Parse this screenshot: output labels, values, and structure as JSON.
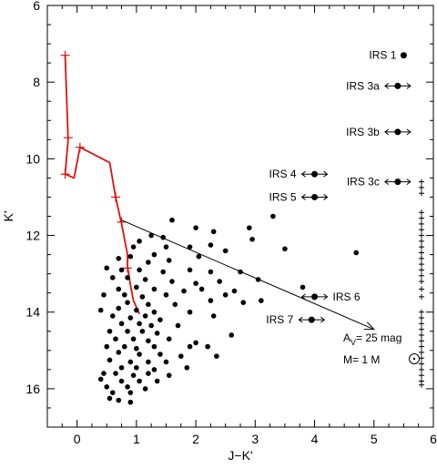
{
  "chart_data": {
    "type": "scatter",
    "xlabel": "J−K'",
    "ylabel": "K'",
    "xlim": [
      -0.5,
      6.0
    ],
    "ylim": [
      17.0,
      6.0
    ],
    "x_ticks": [
      0,
      1,
      2,
      3,
      4,
      5,
      6
    ],
    "y_ticks": [
      6,
      8,
      10,
      12,
      14,
      16
    ],
    "colors": {
      "points": "#000000",
      "track": "#dd1111",
      "axes": "#000000"
    },
    "track": {
      "x": [
        -0.2,
        -0.15,
        -0.2,
        -0.05,
        0.05,
        0.55,
        0.65,
        0.75,
        0.85,
        0.85,
        0.9,
        0.95,
        1.05
      ],
      "y": [
        7.3,
        9.5,
        10.4,
        10.5,
        9.7,
        10.1,
        11.0,
        11.7,
        12.5,
        12.8,
        13.3,
        13.7,
        14.05
      ],
      "marks_x": [
        -0.2,
        -0.15,
        -0.2,
        0.05,
        0.65,
        0.75,
        0.85
      ],
      "marks_y": [
        7.3,
        9.45,
        10.4,
        9.7,
        11.0,
        11.65,
        12.85
      ]
    },
    "reddening_vector": {
      "from": [
        0.75,
        11.6
      ],
      "to": [
        5.0,
        14.45
      ]
    },
    "labeled_sources": [
      {
        "label": "IRS 1",
        "x": 5.5,
        "y": 7.3,
        "arrow": false,
        "label_side": "left"
      },
      {
        "label": "IRS 3a",
        "x": 5.4,
        "y": 8.1,
        "arrow": true,
        "label_side": "left"
      },
      {
        "label": "IRS 3b",
        "x": 5.4,
        "y": 9.3,
        "arrow": true,
        "label_side": "left"
      },
      {
        "label": "IRS 3c",
        "x": 5.4,
        "y": 10.6,
        "arrow": true,
        "label_side": "left"
      },
      {
        "label": "IRS 4",
        "x": 4.0,
        "y": 10.4,
        "arrow": true,
        "label_side": "left"
      },
      {
        "label": "IRS 5",
        "x": 4.0,
        "y": 11.0,
        "arrow": true,
        "label_side": "left"
      },
      {
        "label": "IRS 6",
        "x": 4.0,
        "y": 13.6,
        "arrow": true,
        "label_side": "right"
      },
      {
        "label": "IRS 7",
        "x": 3.95,
        "y": 14.2,
        "arrow": true,
        "label_side": "left"
      }
    ],
    "annotation_av": "A",
    "annotation_av_sub": "V",
    "annotation_av_value": "= 25 mag",
    "annotation_mass": "M= 1 M",
    "upper_limits_x": 5.8,
    "upper_limits_y": [
      10.6,
      10.75,
      10.9,
      11.4,
      11.55,
      11.7,
      11.85,
      12.0,
      12.15,
      12.3,
      12.45,
      12.6,
      12.75,
      12.9,
      13.05,
      13.2,
      13.4,
      13.6,
      14.0,
      14.15,
      14.3,
      14.45,
      14.6,
      14.75,
      14.9,
      15.05,
      15.2,
      15.35,
      15.5,
      15.65,
      15.8,
      15.9
    ],
    "points": [
      [
        1.6,
        11.6
      ],
      [
        2.0,
        11.8
      ],
      [
        2.3,
        11.9
      ],
      [
        2.9,
        11.8
      ],
      [
        3.3,
        11.5
      ],
      [
        2.95,
        12.1
      ],
      [
        3.5,
        12.35
      ],
      [
        4.7,
        12.45
      ],
      [
        1.05,
        12.15
      ],
      [
        1.25,
        12.0
      ],
      [
        1.45,
        12.05
      ],
      [
        1.5,
        12.3
      ],
      [
        1.9,
        12.3
      ],
      [
        2.25,
        12.25
      ],
      [
        2.5,
        12.4
      ],
      [
        0.95,
        12.3
      ],
      [
        1.3,
        12.5
      ],
      [
        0.7,
        12.6
      ],
      [
        0.9,
        12.55
      ],
      [
        1.2,
        12.7
      ],
      [
        1.55,
        12.65
      ],
      [
        2.05,
        12.55
      ],
      [
        0.5,
        12.85
      ],
      [
        0.75,
        12.9
      ],
      [
        1.05,
        12.9
      ],
      [
        1.45,
        12.95
      ],
      [
        1.9,
        12.9
      ],
      [
        2.25,
        12.95
      ],
      [
        2.75,
        12.95
      ],
      [
        0.6,
        13.1
      ],
      [
        0.85,
        13.1
      ],
      [
        1.15,
        13.15
      ],
      [
        1.6,
        13.2
      ],
      [
        2.0,
        13.25
      ],
      [
        2.4,
        13.2
      ],
      [
        3.05,
        13.15
      ],
      [
        0.7,
        13.4
      ],
      [
        1.0,
        13.35
      ],
      [
        1.3,
        13.4
      ],
      [
        1.8,
        13.45
      ],
      [
        2.1,
        13.4
      ],
      [
        2.65,
        13.45
      ],
      [
        3.8,
        13.35
      ],
      [
        0.45,
        13.55
      ],
      [
        0.8,
        13.55
      ],
      [
        1.1,
        13.6
      ],
      [
        1.5,
        13.55
      ],
      [
        2.25,
        13.7
      ],
      [
        2.5,
        13.55
      ],
      [
        3.1,
        13.7
      ],
      [
        0.85,
        13.75
      ],
      [
        1.2,
        13.8
      ],
      [
        1.65,
        13.8
      ],
      [
        2.8,
        13.75
      ],
      [
        0.4,
        13.95
      ],
      [
        0.7,
        13.9
      ],
      [
        1.0,
        13.95
      ],
      [
        1.3,
        14.0
      ],
      [
        1.9,
        14.0
      ],
      [
        0.6,
        14.1
      ],
      [
        0.9,
        14.15
      ],
      [
        1.15,
        14.1
      ],
      [
        1.4,
        14.2
      ],
      [
        2.3,
        14.1
      ],
      [
        0.75,
        14.3
      ],
      [
        1.05,
        14.3
      ],
      [
        1.25,
        14.35
      ],
      [
        1.7,
        14.35
      ],
      [
        0.55,
        14.5
      ],
      [
        0.85,
        14.5
      ],
      [
        1.1,
        14.5
      ],
      [
        1.35,
        14.55
      ],
      [
        2.6,
        14.6
      ],
      [
        0.65,
        14.7
      ],
      [
        0.95,
        14.7
      ],
      [
        1.2,
        14.75
      ],
      [
        1.55,
        14.7
      ],
      [
        2.0,
        14.8
      ],
      [
        0.5,
        14.9
      ],
      [
        0.8,
        14.9
      ],
      [
        1.0,
        14.95
      ],
      [
        1.3,
        14.9
      ],
      [
        1.9,
        14.9
      ],
      [
        2.2,
        14.9
      ],
      [
        0.7,
        15.05
      ],
      [
        1.05,
        15.1
      ],
      [
        1.4,
        15.1
      ],
      [
        1.75,
        15.15
      ],
      [
        2.35,
        15.15
      ],
      [
        0.55,
        15.25
      ],
      [
        0.9,
        15.3
      ],
      [
        1.2,
        15.3
      ],
      [
        1.5,
        15.3
      ],
      [
        0.75,
        15.45
      ],
      [
        1.0,
        15.45
      ],
      [
        1.3,
        15.5
      ],
      [
        1.85,
        15.45
      ],
      [
        0.45,
        15.6
      ],
      [
        0.65,
        15.6
      ],
      [
        0.95,
        15.65
      ],
      [
        1.2,
        15.6
      ],
      [
        1.55,
        15.65
      ],
      [
        0.4,
        15.75
      ],
      [
        0.75,
        15.8
      ],
      [
        1.05,
        15.8
      ],
      [
        1.35,
        15.8
      ],
      [
        0.5,
        15.95
      ],
      [
        0.85,
        15.95
      ],
      [
        1.15,
        16.0
      ],
      [
        0.6,
        16.1
      ],
      [
        0.9,
        16.1
      ],
      [
        0.55,
        16.25
      ],
      [
        0.7,
        16.3
      ],
      [
        0.9,
        16.35
      ]
    ]
  }
}
